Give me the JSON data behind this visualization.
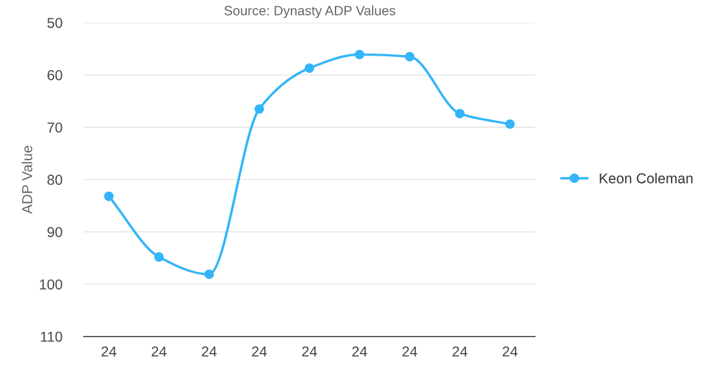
{
  "chart_data": {
    "type": "line",
    "subtitle": "Source: Dynasty ADP Values",
    "ylabel": "ADP Value",
    "categories": [
      "24",
      "24",
      "24",
      "24",
      "24",
      "24",
      "24",
      "24",
      "24"
    ],
    "series": [
      {
        "name": "Keon Coleman",
        "color": "#33b5f7",
        "values": [
          83.2,
          94.8,
          98.1,
          66.5,
          58.7,
          56.1,
          56.5,
          67.4,
          69.4
        ]
      }
    ],
    "ylim": [
      110,
      50
    ],
    "yticks": [
      50,
      60,
      70,
      80,
      90,
      100,
      110
    ],
    "grid": "y",
    "legend": "right",
    "marker": "circle",
    "line_style": "solid"
  }
}
